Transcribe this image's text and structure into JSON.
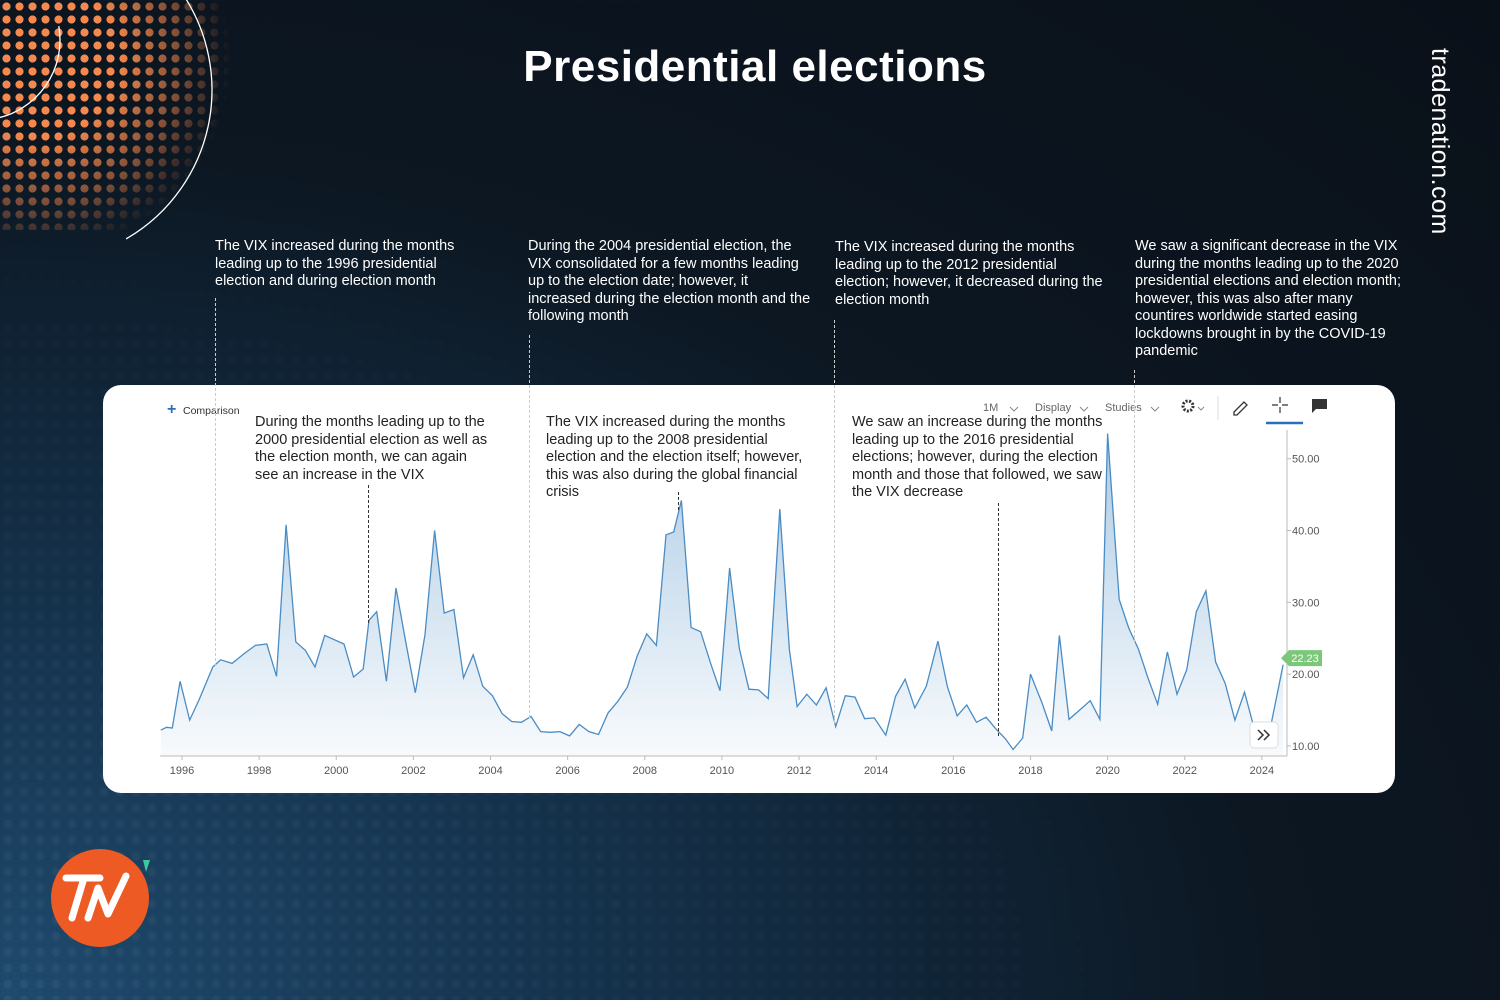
{
  "page": {
    "title": "Presidential elections",
    "brand": "tradenation.com"
  },
  "chart_data": {
    "type": "area",
    "toolbar": {
      "comparison": "Comparison",
      "interval": "1M",
      "display": "Display",
      "studies": "Studies"
    },
    "annotations": [
      "The VIX increased during the months leading up to the 1996 presidential election and during election month",
      "During the 2004 presidential election, the VIX consolidated for a few months leading up to the election date; however, it increased during the election month and the following month",
      "The VIX increased during the months leading up to the 2012 presidential election; however, it decreased during the election month",
      "We saw a significant decrease in the VIX during the months leading up to the 2020 presidential elections and election month; however, this was also after many countires worldwide started easing lockdowns brought in by the COVID-19 pandemic",
      "During the months leading up to the 2000 presidential election as well as the election month, we can again see an increase in the VIX",
      "The VIX increased during the months leading up to the 2008 presidential election and the election itself; however, this was also during the global financial crisis",
      "We saw an increase during the months leading up to the 2016 presidential elections; however, during the election month and those that followed, we saw the VIX decrease"
    ],
    "color": "#4a8cc4",
    "x": [
      1995.45,
      1995.6,
      1995.75,
      1995.95,
      1996.2,
      1996.45,
      1996.8,
      1997.0,
      1997.3,
      1997.6,
      1997.9,
      1998.2,
      1998.45,
      1998.7,
      1998.95,
      1999.2,
      1999.45,
      1999.7,
      1999.95,
      2000.2,
      2000.45,
      2000.7,
      2000.85,
      2001.05,
      2001.3,
      2001.55,
      2001.8,
      2002.05,
      2002.3,
      2002.55,
      2002.8,
      2003.05,
      2003.3,
      2003.55,
      2003.8,
      2004.05,
      2004.3,
      2004.55,
      2004.8,
      2005.05,
      2005.3,
      2005.55,
      2005.8,
      2006.05,
      2006.3,
      2006.55,
      2006.8,
      2007.05,
      2007.3,
      2007.55,
      2007.8,
      2008.05,
      2008.3,
      2008.55,
      2008.75,
      2008.95,
      2009.2,
      2009.45,
      2009.7,
      2009.95,
      2010.2,
      2010.45,
      2010.7,
      2010.95,
      2011.2,
      2011.5,
      2011.75,
      2011.95,
      2012.2,
      2012.45,
      2012.7,
      2012.95,
      2013.2,
      2013.45,
      2013.7,
      2013.95,
      2014.25,
      2014.5,
      2014.75,
      2015.0,
      2015.3,
      2015.6,
      2015.85,
      2016.1,
      2016.35,
      2016.6,
      2016.85,
      2017.1,
      2017.35,
      2017.55,
      2017.8,
      2018.0,
      2018.3,
      2018.55,
      2018.75,
      2019.0,
      2019.3,
      2019.55,
      2019.8,
      2020.0,
      2020.3,
      2020.55,
      2020.8,
      2021.05,
      2021.3,
      2021.55,
      2021.8,
      2022.05,
      2022.3,
      2022.55,
      2022.8,
      2023.05,
      2023.3,
      2023.55,
      2023.8,
      2024.25,
      2024.55
    ],
    "values": [
      12.2,
      12.6,
      12.5,
      19,
      13.6,
      16.5,
      21,
      22,
      21.5,
      22.8,
      24,
      24.2,
      19.7,
      40.8,
      24.5,
      23.3,
      21,
      25.4,
      24.8,
      24.2,
      19.6,
      20.7,
      27.5,
      28.7,
      19,
      32,
      24.5,
      17.4,
      25.5,
      40,
      28.5,
      29,
      19.5,
      22.7,
      18.3,
      17,
      14.5,
      13.4,
      13.3,
      14.1,
      12,
      11.9,
      12,
      11.4,
      13,
      12,
      11.6,
      14.6,
      16.2,
      18.2,
      22.5,
      25.6,
      24,
      39.4,
      39.8,
      44.2,
      26.5,
      25.9,
      21.6,
      17.7,
      34.8,
      23.6,
      17.9,
      17.8,
      16.6,
      43,
      23.4,
      15.5,
      17.2,
      15.7,
      18.1,
      12.7,
      17,
      16.8,
      13.8,
      13.9,
      11.5,
      16.9,
      19.3,
      15.3,
      18.3,
      24.6,
      18.2,
      14.2,
      15.7,
      13.3,
      14,
      12.4,
      11,
      9.5,
      11.1,
      20,
      16,
      12.1,
      25.4,
      13.7,
      15.1,
      16.3,
      13.7,
      53.5,
      30.4,
      26.4,
      23.5,
      19.4,
      15.8,
      23.1,
      17.2,
      20.6,
      28.7,
      31.6,
      21.7,
      18.7,
      13.6,
      17.5,
      12.5,
      13.3,
      21.3
    ],
    "current_value": 22.23,
    "current_value_color": "#7cc87a",
    "xlim": [
      1995.43,
      2024.6
    ],
    "xticks": [
      1996,
      1998,
      2000,
      2002,
      2004,
      2006,
      2008,
      2010,
      2012,
      2014,
      2016,
      2018,
      2020,
      2022,
      2024
    ],
    "ylim": [
      8.6,
      54
    ],
    "yticks": [
      {
        "value": 10,
        "label": "10.00"
      },
      {
        "value": 20,
        "label": "20.00"
      },
      {
        "value": 30,
        "label": "30.00"
      },
      {
        "value": 40,
        "label": "40.00"
      },
      {
        "value": 50,
        "label": "50.00"
      }
    ],
    "grid": false
  }
}
